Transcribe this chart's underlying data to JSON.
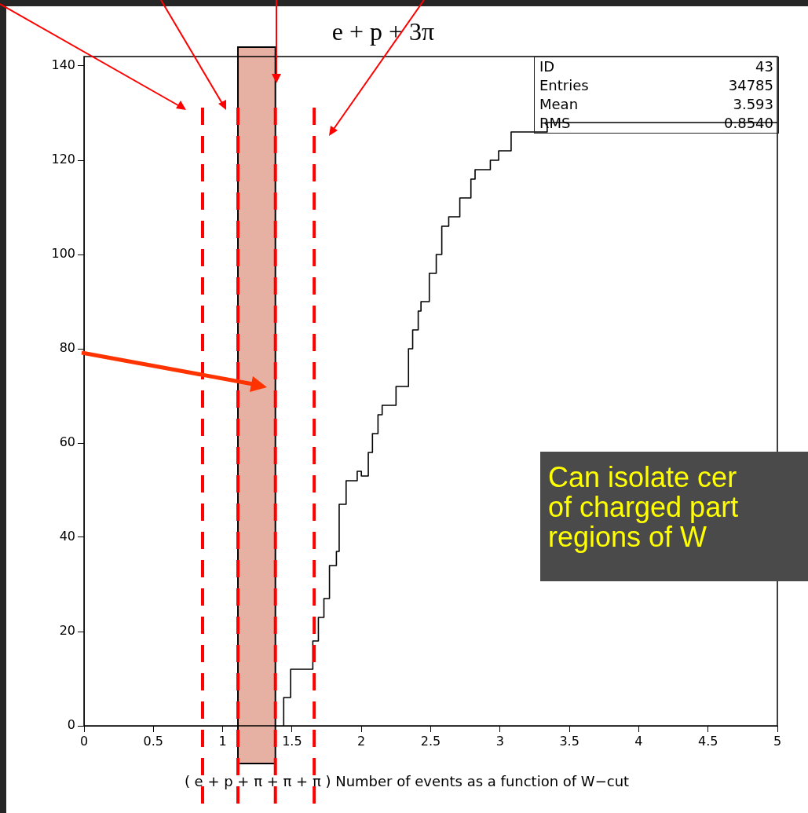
{
  "chart_data": {
    "type": "step",
    "title": "e + p + 3π",
    "xlabel": "( e + p + π + π + π ) Number of events as a function of W−cut",
    "x": [
      1.44,
      1.49,
      1.65,
      1.69,
      1.73,
      1.77,
      1.82,
      1.84,
      1.89,
      1.97,
      2.0,
      2.05,
      2.08,
      2.12,
      2.15,
      2.25,
      2.34,
      2.37,
      2.41,
      2.43,
      2.49,
      2.54,
      2.58,
      2.63,
      2.71,
      2.79,
      2.82,
      2.93,
      2.99,
      3.08,
      3.34,
      4.36,
      5
    ],
    "series": [
      {
        "color": "#000000",
        "values": [
          0,
          6,
          12,
          18,
          23,
          27,
          34,
          37,
          47,
          52,
          54,
          53,
          58,
          62,
          66,
          68,
          72,
          80,
          84,
          88,
          90,
          96,
          100,
          106,
          108,
          112,
          116,
          118,
          120,
          122,
          126,
          128,
          128
        ]
      }
    ],
    "xlim": [
      0,
      5
    ],
    "xticks": [
      0,
      0.5,
      1,
      1.5,
      2,
      2.5,
      3,
      3.5,
      4,
      4.5,
      5
    ],
    "ylim": [
      0,
      142
    ],
    "yticks": [
      0,
      20,
      40,
      60,
      80,
      100,
      120,
      140
    ],
    "grid": false,
    "legend": false,
    "marker": "none",
    "line_style": "solid",
    "ref_lines": [
      {
        "axis": "x",
        "value": 0.855,
        "color": "#ff0000",
        "line_style": "dashed"
      },
      {
        "axis": "x",
        "value": 1.11,
        "color": "#ff0000",
        "line_style": "dashed"
      },
      {
        "axis": "x",
        "value": 1.38,
        "color": "#ff0000",
        "line_style": "dashed"
      },
      {
        "axis": "x",
        "value": 1.66,
        "color": "#ff0000",
        "line_style": "dashed"
      }
    ],
    "bands": [
      {
        "axis": "x",
        "from": 1.11,
        "to": 1.38,
        "color": "#e6b0a2"
      }
    ],
    "annotations": [
      "ID 43",
      "Entries 34785",
      "Mean 3.593",
      "RMS 0.8540",
      "Can isolate cer\nof charged part\nregions of W"
    ]
  }
}
